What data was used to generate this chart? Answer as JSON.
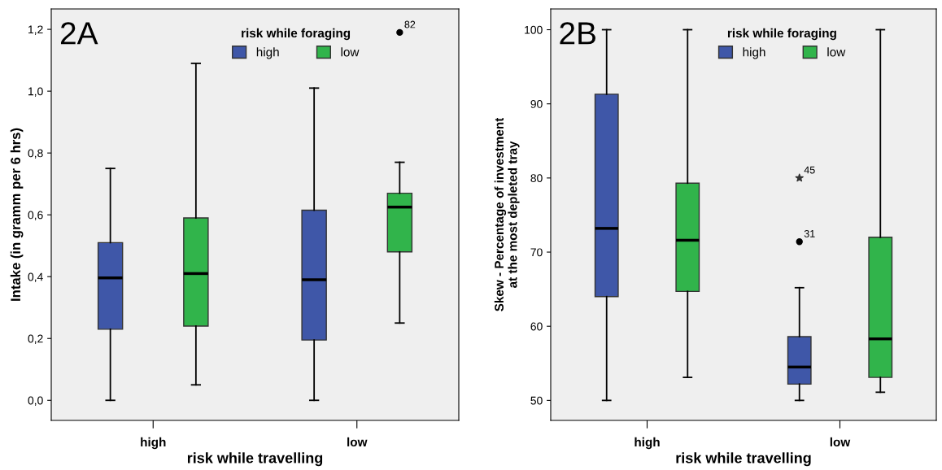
{
  "chart_data": [
    {
      "type": "box",
      "xlabel": "risk while travelling",
      "ylabel": "Intake (in gramm per 6 hrs)",
      "legend_title": "risk while foraging",
      "legend": "top",
      "grid": false,
      "annotations": [
        "2A",
        "82"
      ],
      "categories": [
        "high",
        "low"
      ],
      "ylim": [
        -0.065,
        1.266
      ],
      "yticks": [
        {
          "value": 0,
          "label": "0,0"
        },
        {
          "value": 0.2,
          "label": "0,2"
        },
        {
          "value": 0.4,
          "label": "0,4"
        },
        {
          "value": 0.6,
          "label": "0,6"
        },
        {
          "value": 0.8,
          "label": "0,8"
        },
        {
          "value": 1.0,
          "label": "1,0"
        },
        {
          "value": 1.2,
          "label": "1,2"
        }
      ],
      "series": [
        {
          "name": "high",
          "color": "#3f57a8",
          "boxes": [
            {
              "low": 0,
              "q1": 0.23,
              "median": 0.396,
              "q3": 0.51,
              "high": 0.75
            },
            {
              "low": 0,
              "q1": 0.195,
              "median": 0.39,
              "q3": 0.615,
              "high": 1.01
            }
          ]
        },
        {
          "name": "low",
          "color": "#31b44b",
          "boxes": [
            {
              "low": 0.05,
              "q1": 0.24,
              "median": 0.41,
              "q3": 0.59,
              "high": 1.09
            },
            {
              "low": 0.25,
              "q1": 0.48,
              "median": 0.625,
              "q3": 0.67,
              "high": 0.77,
              "outliers": [
                1.19
              ]
            }
          ]
        }
      ]
    },
    {
      "type": "box",
      "xlabel": "risk while travelling",
      "ylabel": "Skew - Percentage of investment\nat the most depleted tray",
      "legend_title": "risk while foraging",
      "legend": "top",
      "grid": false,
      "annotations": [
        "2B",
        "31",
        "45"
      ],
      "categories": [
        "high",
        "low"
      ],
      "ylim": [
        47.3,
        102.8
      ],
      "yticks": [
        50,
        60,
        70,
        80,
        90,
        100
      ],
      "series": [
        {
          "name": "high",
          "color": "#3f57a8",
          "boxes": [
            {
              "low": 50,
              "q1": 64.0,
              "median": 73.2,
              "q3": 91.3,
              "high": 100
            },
            {
              "low": 50,
              "q1": 52.2,
              "median": 54.5,
              "q3": 58.6,
              "high": 65.2,
              "outliers": [
                71.4
              ]
            }
          ]
        },
        {
          "type": "scatter",
          "marker": "star",
          "color": "#333333",
          "x": [
            "low"
          ],
          "values": [
            80
          ]
        },
        {
          "name": "low",
          "color": "#31b44b",
          "boxes": [
            {
              "low": 53.1,
              "q1": 64.7,
              "median": 71.6,
              "q3": 79.3,
              "high": 100
            },
            {
              "low": 51.1,
              "q1": 53.1,
              "median": 58.3,
              "q3": 72.0,
              "high": 100
            }
          ]
        }
      ]
    }
  ]
}
